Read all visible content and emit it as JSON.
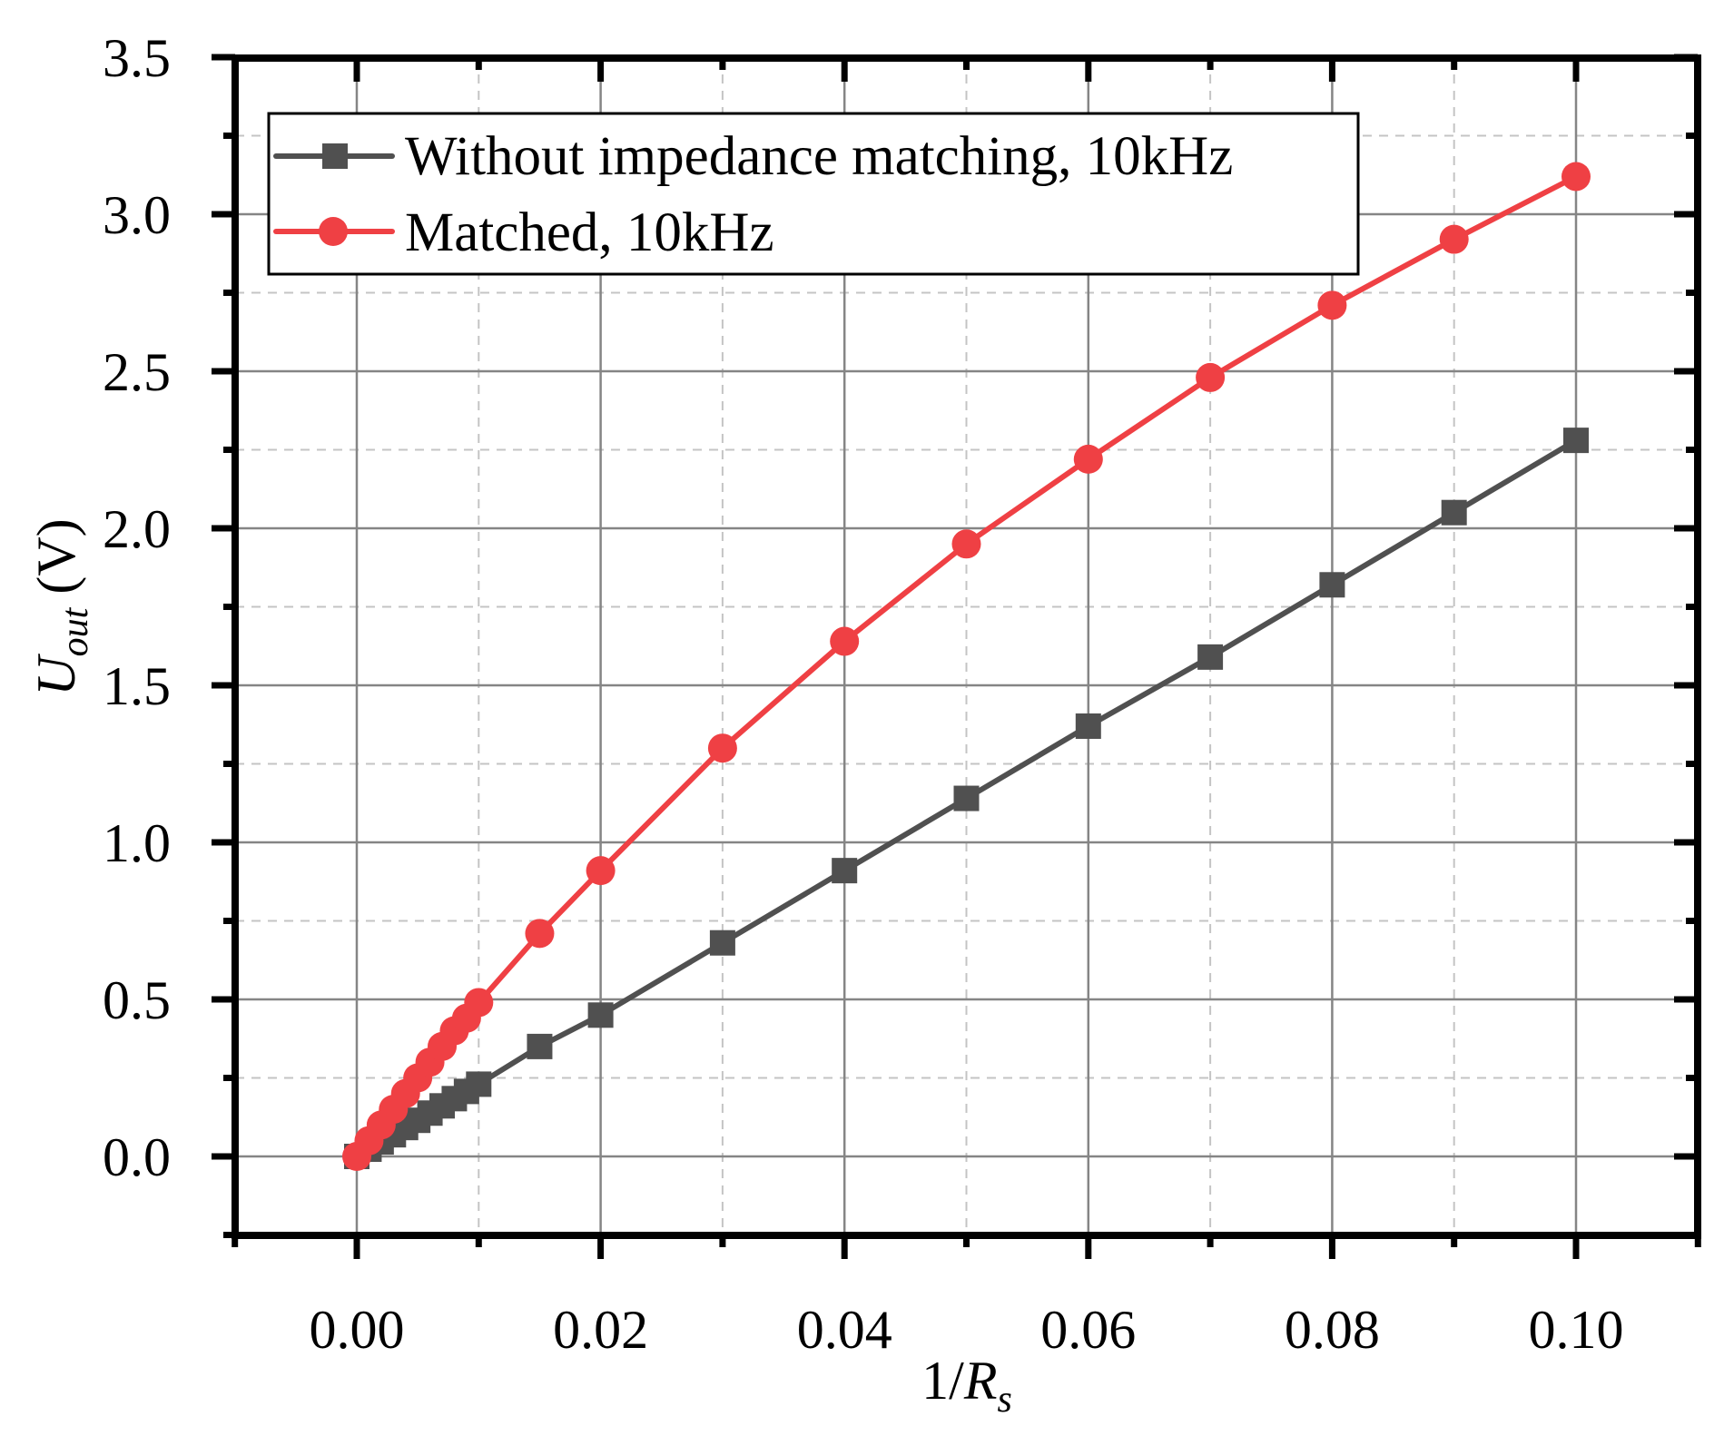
{
  "chart_data": {
    "type": "line",
    "title": "",
    "xlabel": "1/R_s",
    "xlabel_parts": {
      "main": "1/",
      "italic": "R",
      "sub": "s"
    },
    "ylabel": "U_out (V)",
    "ylabel_parts": {
      "italic": "U",
      "sub": "out",
      "unit": " (V)"
    },
    "xlim": [
      -0.01,
      0.11
    ],
    "ylim": [
      -0.25,
      3.5
    ],
    "x_ticks": [
      0.0,
      0.02,
      0.04,
      0.06,
      0.08,
      0.1
    ],
    "x_tick_labels": [
      "0.00",
      "0.02",
      "0.04",
      "0.06",
      "0.08",
      "0.10"
    ],
    "x_minor_ticks": [
      -0.01,
      0.01,
      0.03,
      0.05,
      0.07,
      0.09,
      0.11
    ],
    "y_ticks": [
      0.0,
      0.5,
      1.0,
      1.5,
      2.0,
      2.5,
      3.0,
      3.5
    ],
    "y_tick_labels": [
      "0.0",
      "0.5",
      "1.0",
      "1.5",
      "2.0",
      "2.5",
      "3.0",
      "3.5"
    ],
    "y_minor_ticks": [
      -0.25,
      0.25,
      0.75,
      1.25,
      1.75,
      2.25,
      2.75,
      3.25
    ],
    "grid": {
      "major": "solid",
      "minor": "dashed"
    },
    "legend_position": "upper-left",
    "series": [
      {
        "name": "Without impedance matching, 10kHz",
        "marker": "square",
        "color": "#505050",
        "x": [
          0.0,
          0.001,
          0.002,
          0.003,
          0.004,
          0.005,
          0.006,
          0.007,
          0.008,
          0.009,
          0.01,
          0.015,
          0.02,
          0.03,
          0.04,
          0.05,
          0.06,
          0.07,
          0.08,
          0.09,
          0.1
        ],
        "values": [
          0.0,
          0.023,
          0.046,
          0.069,
          0.092,
          0.115,
          0.138,
          0.161,
          0.184,
          0.207,
          0.23,
          0.35,
          0.45,
          0.68,
          0.91,
          1.14,
          1.37,
          1.59,
          1.82,
          2.05,
          2.28
        ]
      },
      {
        "name": "Matched, 10kHz",
        "marker": "circle",
        "color": "#EF4044",
        "x": [
          0.0,
          0.001,
          0.002,
          0.003,
          0.004,
          0.005,
          0.006,
          0.007,
          0.008,
          0.009,
          0.01,
          0.015,
          0.02,
          0.03,
          0.04,
          0.05,
          0.06,
          0.07,
          0.08,
          0.09,
          0.1
        ],
        "values": [
          0.0,
          0.05,
          0.1,
          0.15,
          0.2,
          0.25,
          0.3,
          0.35,
          0.4,
          0.44,
          0.49,
          0.71,
          0.91,
          1.3,
          1.64,
          1.95,
          2.22,
          2.48,
          2.71,
          2.92,
          3.12
        ]
      }
    ]
  },
  "legend": {
    "items": [
      {
        "label": "Without impedance matching, 10kHz"
      },
      {
        "label": "Matched, 10kHz"
      }
    ]
  },
  "axes": {
    "x_title": "1/R_s",
    "y_title": "U_out (V)"
  }
}
